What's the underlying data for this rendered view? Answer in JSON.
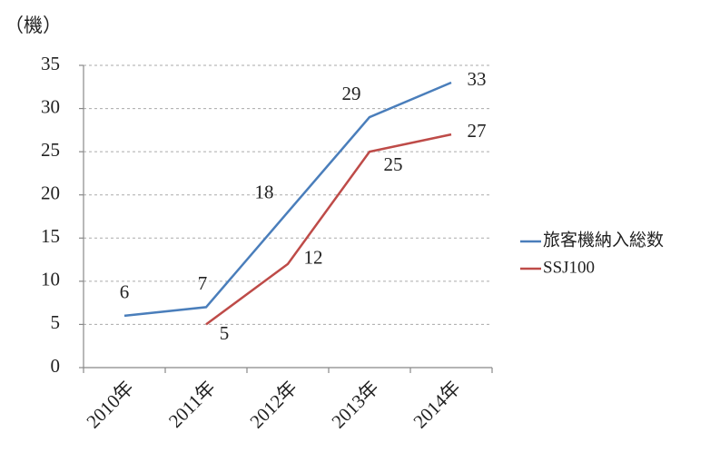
{
  "chart_data": {
    "type": "line",
    "y_label": "（機）",
    "categories": [
      "2010年",
      "2011年",
      "2012年",
      "2013年",
      "2014年"
    ],
    "series": [
      {
        "name": "旅客機納入総数",
        "color": "#4a7ebb",
        "values": [
          6,
          7,
          18,
          29,
          33
        ]
      },
      {
        "name": "SSJ100",
        "color": "#be4b48",
        "values": [
          null,
          5,
          12,
          25,
          27
        ]
      }
    ],
    "ylim": [
      0,
      35
    ],
    "yticks": [
      0,
      5,
      10,
      15,
      20,
      25,
      30,
      35
    ],
    "grid": true,
    "legend": "right",
    "data_labels": true
  }
}
